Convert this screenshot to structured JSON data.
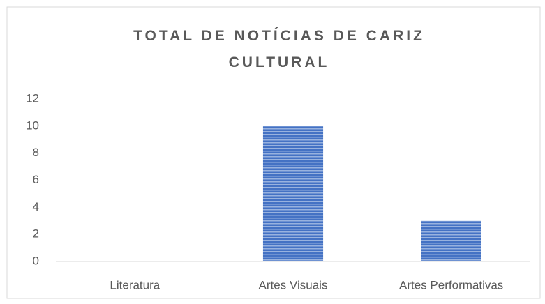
{
  "chart_data": {
    "type": "bar",
    "title": "TOTAL DE NOTÍCIAS DE CARIZ CULTURAL",
    "categories": [
      "Literatura",
      "Artes Visuais",
      "Artes Performativas"
    ],
    "values": [
      0,
      10,
      3
    ],
    "color": "#4472c4",
    "ylim": [
      0,
      12
    ],
    "yticks": [
      0,
      2,
      4,
      6,
      8,
      10,
      12
    ],
    "grid": false
  }
}
